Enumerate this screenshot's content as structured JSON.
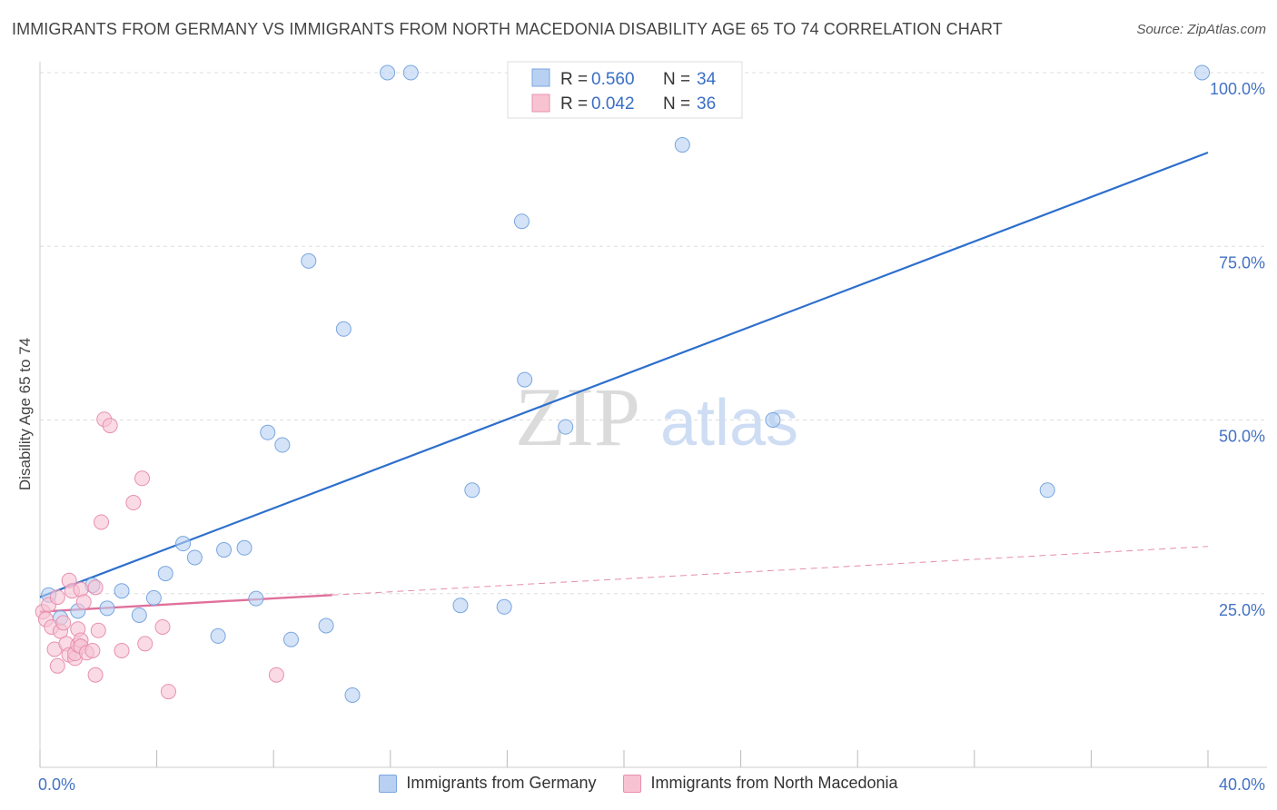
{
  "title": "IMMIGRANTS FROM GERMANY VS IMMIGRANTS FROM NORTH MACEDONIA DISABILITY AGE 65 TO 74 CORRELATION CHART",
  "source": "Source: ZipAtlas.com",
  "watermark": {
    "zip": "ZIP",
    "atlas": "atlas"
  },
  "colors": {
    "blue_fill": "#b8d0f2",
    "blue_stroke": "#7aa6e0",
    "blue_line": "#2d6fcc",
    "pink_fill": "#f7c3d3",
    "pink_stroke": "#e890ae",
    "pink_line": "#e0709a",
    "tick_text": "#4472c4",
    "grid": "#dddddd"
  },
  "legend": {
    "rows": [
      {
        "r_label": "R = ",
        "r_value": "0.560",
        "n_label": "N = ",
        "n_value": "34",
        "color": "blue"
      },
      {
        "r_label": "R = ",
        "r_value": "0.042",
        "n_label": "N = ",
        "n_value": "36",
        "color": "pink"
      }
    ]
  },
  "bottom_legend": {
    "germany": "Immigrants from Germany",
    "macedonia": "Immigrants from North Macedonia"
  },
  "chart_data": {
    "type": "scatter",
    "title": "IMMIGRANTS FROM GERMANY VS IMMIGRANTS FROM NORTH MACEDONIA DISABILITY AGE 65 TO 74 CORRELATION CHART",
    "xlabel": "",
    "ylabel": "Disability Age 65 to 74",
    "xlim": [
      0,
      40
    ],
    "ylim": [
      0,
      100
    ],
    "x_tick_labels": [
      {
        "value": 0,
        "label": "0.0%"
      },
      {
        "value": 40,
        "label": "40.0%"
      }
    ],
    "y_tick_labels": [
      {
        "value": 25,
        "label": "25.0%"
      },
      {
        "value": 50,
        "label": "50.0%"
      },
      {
        "value": 75,
        "label": "75.0%"
      },
      {
        "value": 100,
        "label": "100.0%"
      }
    ],
    "series": [
      {
        "name": "Immigrants from Germany",
        "color": "blue",
        "R": 0.56,
        "N": 34,
        "trend": {
          "x": [
            0,
            40
          ],
          "y": [
            24.5,
            88.5
          ],
          "dashed_from": null
        },
        "points": [
          [
            0.3,
            24.8
          ],
          [
            0.7,
            21.5
          ],
          [
            1.3,
            22.5
          ],
          [
            1.8,
            26.2
          ],
          [
            2.3,
            22.9
          ],
          [
            2.8,
            25.4
          ],
          [
            3.4,
            21.9
          ],
          [
            3.9,
            24.4
          ],
          [
            4.3,
            27.9
          ],
          [
            4.9,
            32.2
          ],
          [
            5.3,
            30.2
          ],
          [
            6.1,
            18.9
          ],
          [
            6.3,
            31.3
          ],
          [
            7.0,
            31.6
          ],
          [
            7.4,
            24.3
          ],
          [
            7.8,
            48.2
          ],
          [
            8.3,
            46.4
          ],
          [
            8.6,
            18.4
          ],
          [
            9.2,
            72.9
          ],
          [
            9.8,
            20.4
          ],
          [
            10.4,
            63.1
          ],
          [
            10.7,
            10.4
          ],
          [
            11.9,
            100.0
          ],
          [
            12.7,
            100.0
          ],
          [
            14.4,
            23.3
          ],
          [
            14.8,
            39.9
          ],
          [
            15.9,
            23.1
          ],
          [
            16.5,
            78.6
          ],
          [
            16.6,
            55.8
          ],
          [
            18.0,
            49.0
          ],
          [
            22.0,
            89.6
          ],
          [
            25.1,
            50.0
          ],
          [
            34.5,
            39.9
          ],
          [
            39.8,
            100.0
          ]
        ]
      },
      {
        "name": "Immigrants from North Macedonia",
        "color": "pink",
        "R": 0.042,
        "N": 36,
        "trend": {
          "x": [
            0,
            10
          ],
          "y": [
            22.4,
            24.8
          ],
          "dashed_to": {
            "x": 40,
            "y": 31.8
          }
        },
        "points": [
          [
            0.1,
            22.4
          ],
          [
            0.2,
            21.3
          ],
          [
            0.3,
            23.4
          ],
          [
            0.4,
            20.2
          ],
          [
            0.5,
            17.0
          ],
          [
            0.6,
            14.6
          ],
          [
            0.6,
            24.5
          ],
          [
            0.7,
            19.6
          ],
          [
            0.8,
            20.8
          ],
          [
            0.9,
            17.8
          ],
          [
            1.0,
            16.2
          ],
          [
            1.0,
            26.9
          ],
          [
            1.1,
            25.4
          ],
          [
            1.2,
            15.7
          ],
          [
            1.2,
            16.4
          ],
          [
            1.3,
            19.9
          ],
          [
            1.3,
            17.6
          ],
          [
            1.4,
            25.6
          ],
          [
            1.4,
            18.3
          ],
          [
            1.4,
            17.4
          ],
          [
            1.5,
            23.8
          ],
          [
            1.6,
            16.5
          ],
          [
            1.8,
            16.8
          ],
          [
            1.9,
            25.9
          ],
          [
            1.9,
            13.3
          ],
          [
            2.0,
            19.7
          ],
          [
            2.1,
            35.3
          ],
          [
            2.2,
            50.1
          ],
          [
            2.4,
            49.2
          ],
          [
            2.8,
            16.8
          ],
          [
            3.2,
            38.1
          ],
          [
            3.5,
            41.6
          ],
          [
            3.6,
            17.8
          ],
          [
            4.2,
            20.2
          ],
          [
            4.4,
            10.9
          ],
          [
            8.1,
            13.3
          ]
        ]
      }
    ]
  }
}
